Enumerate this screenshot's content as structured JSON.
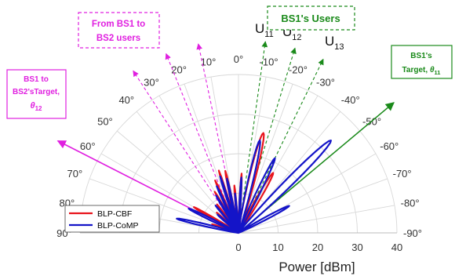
{
  "chart_data": {
    "type": "polar",
    "xlabel": "Power [dBm]",
    "radial_ticks": [
      "0",
      "10",
      "20",
      "30",
      "40"
    ],
    "rlim": [
      0,
      40
    ],
    "theta_range": [
      -90,
      90
    ],
    "angle_ticks": [
      {
        "deg": 90,
        "label": "90°"
      },
      {
        "deg": 80,
        "label": "80°"
      },
      {
        "deg": 70,
        "label": "70°"
      },
      {
        "deg": 60,
        "label": "60°"
      },
      {
        "deg": 50,
        "label": "50°"
      },
      {
        "deg": 40,
        "label": "40°"
      },
      {
        "deg": 30,
        "label": "30°"
      },
      {
        "deg": 20,
        "label": "20°"
      },
      {
        "deg": 10,
        "label": "10°"
      },
      {
        "deg": 0,
        "label": "0°"
      },
      {
        "deg": -10,
        "label": "-10°"
      },
      {
        "deg": -20,
        "label": "-20°"
      },
      {
        "deg": -30,
        "label": "-30°"
      },
      {
        "deg": -40,
        "label": "-40°"
      },
      {
        "deg": -50,
        "label": "-50°"
      },
      {
        "deg": -60,
        "label": "-60°"
      },
      {
        "deg": -70,
        "label": "-70°"
      },
      {
        "deg": -80,
        "label": "-80°"
      },
      {
        "deg": -90,
        "label": "-90°"
      }
    ],
    "legend": {
      "position": "bottom-left"
    },
    "series": [
      {
        "name": "BLP-CBF",
        "color": "#e8141c",
        "lobes": [
          {
            "center": -30,
            "peak": 17.5,
            "width": 7
          },
          {
            "center": -14,
            "peak": 26,
            "width": 8
          },
          {
            "center": -3,
            "peak": 15,
            "width": 3
          },
          {
            "center": 5,
            "peak": 12,
            "width": 3
          },
          {
            "center": 12,
            "peak": 16,
            "width": 3.5
          },
          {
            "center": 17.5,
            "peak": 16.5,
            "width": 3
          },
          {
            "center": 24,
            "peak": 14.5,
            "width": 3
          },
          {
            "center": 30,
            "peak": 12,
            "width": 3
          },
          {
            "center": 37,
            "peak": 9,
            "width": 3
          },
          {
            "center": 47,
            "peak": 7.5,
            "width": 4
          },
          {
            "center": 60,
            "peak": 13,
            "width": 4
          },
          {
            "center": 72,
            "peak": 7,
            "width": 4
          }
        ]
      },
      {
        "name": "BLP-CoMP",
        "color": "#1414c8",
        "lobes": [
          {
            "center": -62,
            "peak": 14.5,
            "width": 6
          },
          {
            "center": -45,
            "peak": 33,
            "width": 8
          },
          {
            "center": -26,
            "peak": 21,
            "width": 6
          },
          {
            "center": -13,
            "peak": 24,
            "width": 7
          },
          {
            "center": -3,
            "peak": 14,
            "width": 3
          },
          {
            "center": 5,
            "peak": 10,
            "width": 3
          },
          {
            "center": 12,
            "peak": 14,
            "width": 3.5
          },
          {
            "center": 18,
            "peak": 15,
            "width": 3
          },
          {
            "center": 25,
            "peak": 13,
            "width": 3
          },
          {
            "center": 31,
            "peak": 11,
            "width": 3
          },
          {
            "center": 40,
            "peak": 9,
            "width": 3
          },
          {
            "center": 49,
            "peak": 7,
            "width": 4
          },
          {
            "center": 64,
            "peak": 14,
            "width": 5
          },
          {
            "center": 77,
            "peak": 16,
            "width": 5
          }
        ]
      }
    ],
    "directions": [
      {
        "name": "bs1-users",
        "color": "#1a8a1a",
        "dashed": true,
        "angles": [
          -8,
          -17,
          -26
        ]
      },
      {
        "name": "bs2-users",
        "color": "#e020e0",
        "dashed": true,
        "angles": [
          12,
          22,
          33
        ]
      },
      {
        "name": "bs1-target",
        "color": "#1a8a1a",
        "dashed": false,
        "angle": -50
      },
      {
        "name": "bs2-target",
        "color": "#e020e0",
        "dashed": false,
        "angle": 63
      }
    ],
    "annotations": {
      "user_labels": [
        {
          "main": "U",
          "sub": "11"
        },
        {
          "main": "U",
          "sub": "12"
        },
        {
          "main": "U",
          "sub": "13"
        }
      ],
      "bs1_users": "BS1's Users",
      "bs1_to_bs2_users": [
        "From BS1 to",
        "BS2 users"
      ],
      "bs1_target": {
        "lines": [
          "BS1's"
        ],
        "text": "Target, ",
        "sym": "θ",
        "sub": "11"
      },
      "bs1_to_bs2_target": {
        "lines": [
          "BS1 to",
          "BS2'sTarget,"
        ],
        "sym": "θ",
        "sub": "12"
      }
    }
  }
}
